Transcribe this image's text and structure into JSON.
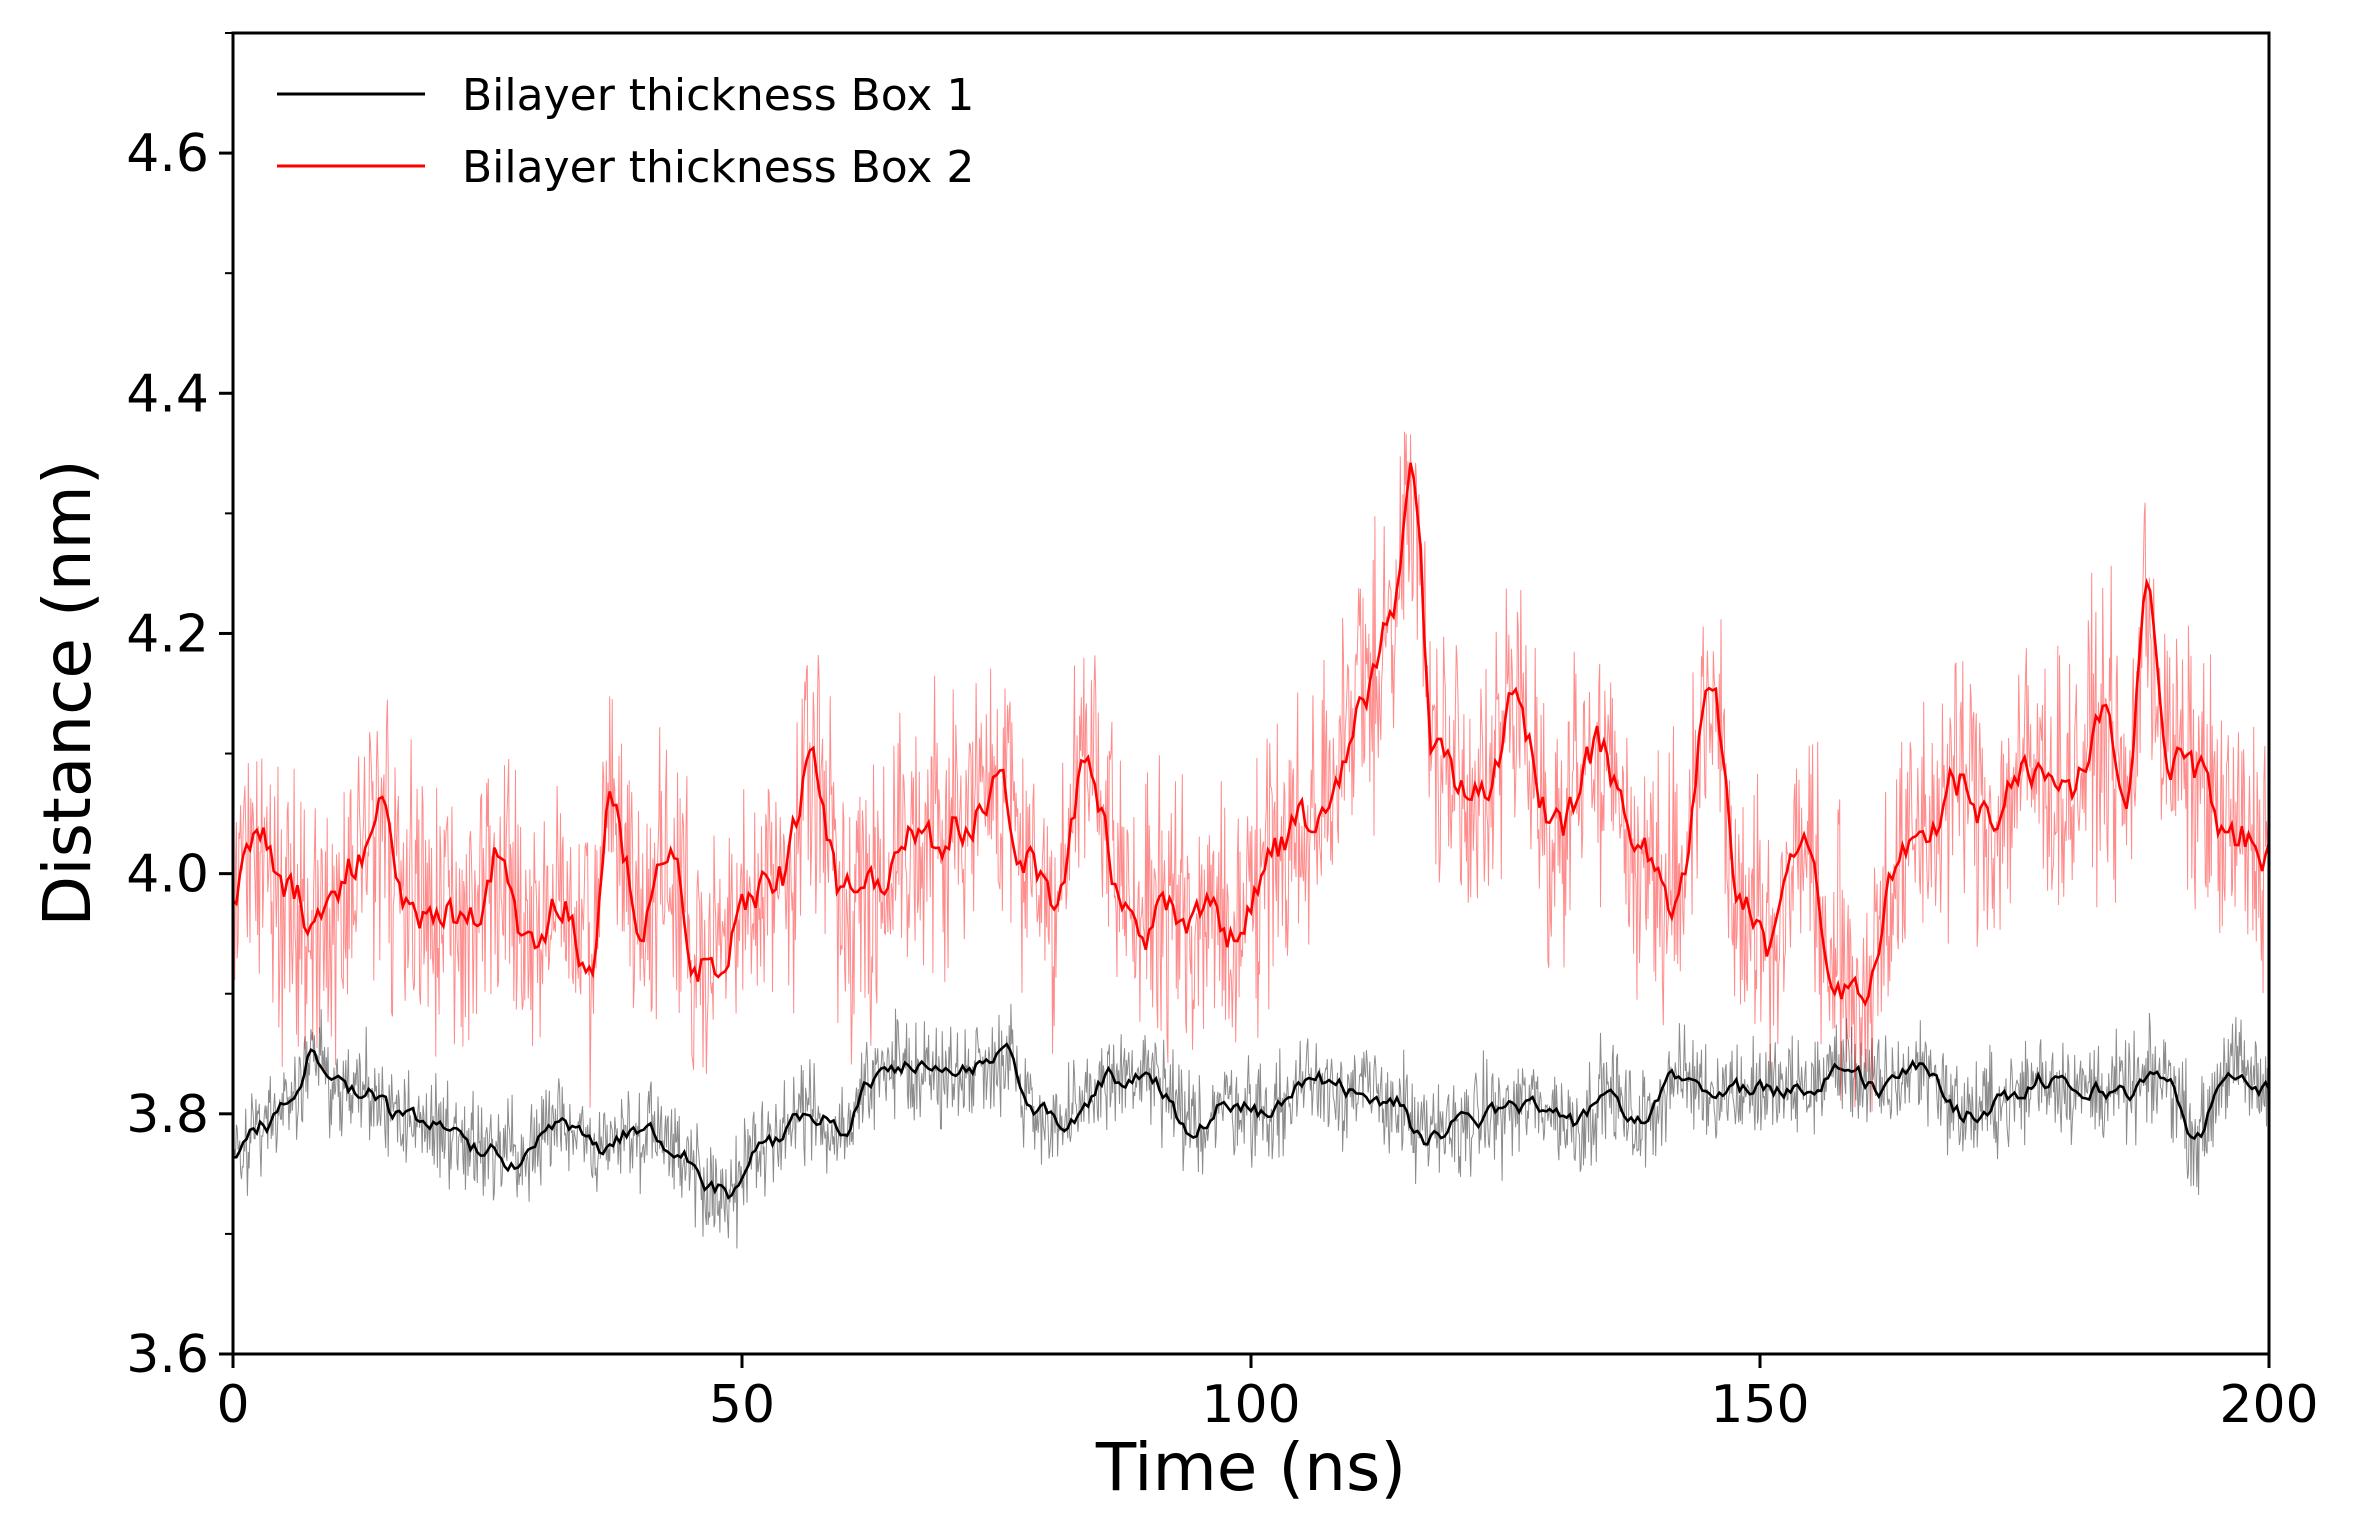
{
  "chart_data": {
    "type": "line",
    "title": "",
    "xlabel": "Time (ns)",
    "ylabel": "Distance (nm)",
    "xlim": [
      0,
      200
    ],
    "ylim": [
      3.6,
      4.7
    ],
    "xticks": [
      0,
      50,
      100,
      150,
      200
    ],
    "xtick_labels": [
      "0",
      "50",
      "100",
      "150",
      "200"
    ],
    "yticks": [
      3.6,
      3.8,
      4.0,
      4.2,
      4.4,
      4.6
    ],
    "ytick_labels": [
      "3.6",
      "3.8",
      "4.0",
      "4.2",
      "4.4",
      "4.6"
    ],
    "y_minor_step": 0.1,
    "grid": false,
    "legend_position": "top-left",
    "series": [
      {
        "name": "Bilayer thickness Box 1",
        "color": "#000000",
        "raw_noise_amplitude": 0.035,
        "smoothed": {
          "x": [
            0,
            3,
            6,
            8,
            10,
            13,
            16,
            20,
            25,
            28,
            32,
            36,
            40,
            44,
            47,
            49,
            52,
            56,
            60,
            63,
            66,
            70,
            73,
            76,
            79,
            82,
            86,
            90,
            94,
            98,
            102,
            106,
            110,
            114,
            117,
            120,
            124,
            128,
            132,
            135,
            138,
            142,
            146,
            150,
            154,
            158,
            162,
            166,
            170,
            174,
            178,
            182,
            186,
            190,
            193,
            196,
            200
          ],
          "y": [
            3.76,
            3.79,
            3.81,
            3.85,
            3.82,
            3.82,
            3.8,
            3.79,
            3.77,
            3.76,
            3.79,
            3.77,
            3.79,
            3.77,
            3.74,
            3.73,
            3.77,
            3.8,
            3.79,
            3.83,
            3.84,
            3.83,
            3.84,
            3.85,
            3.8,
            3.79,
            3.83,
            3.83,
            3.79,
            3.81,
            3.8,
            3.83,
            3.82,
            3.81,
            3.78,
            3.79,
            3.8,
            3.81,
            3.79,
            3.82,
            3.79,
            3.83,
            3.82,
            3.82,
            3.82,
            3.84,
            3.82,
            3.84,
            3.8,
            3.81,
            3.83,
            3.82,
            3.82,
            3.83,
            3.78,
            3.84,
            3.82
          ]
        }
      },
      {
        "name": "Bilayer thickness Box 2",
        "color": "#ff0000",
        "raw_noise_amplitude": 0.09,
        "smoothed": {
          "x": [
            0,
            3,
            6,
            8,
            10,
            12,
            14,
            17,
            20,
            23,
            26,
            29,
            32,
            35,
            37,
            40,
            43,
            46,
            48,
            51,
            54,
            57,
            60,
            63,
            66,
            69,
            72,
            75,
            78,
            81,
            84,
            87,
            90,
            93,
            96,
            99,
            102,
            105,
            108,
            111,
            114,
            116,
            118,
            120,
            123,
            126,
            130,
            134,
            138,
            142,
            145,
            148,
            151,
            154,
            157,
            160,
            163,
            166,
            170,
            173,
            176,
            180,
            184,
            186,
            188,
            190,
            193,
            196,
            200
          ],
          "y": [
            3.99,
            4.02,
            3.98,
            3.95,
            3.96,
            4.0,
            4.06,
            3.98,
            3.96,
            3.96,
            4.02,
            3.94,
            3.98,
            3.92,
            4.06,
            3.97,
            4.0,
            3.92,
            3.93,
            3.98,
            4.0,
            4.09,
            3.98,
            3.98,
            4.04,
            4.03,
            4.05,
            4.08,
            4.02,
            3.98,
            4.1,
            3.99,
            3.96,
            3.97,
            3.96,
            3.95,
            4.02,
            4.04,
            4.08,
            4.15,
            4.22,
            4.32,
            4.1,
            4.08,
            4.06,
            4.14,
            4.03,
            4.1,
            4.02,
            3.98,
            4.16,
            3.99,
            3.94,
            4.03,
            3.93,
            3.9,
            3.99,
            4.04,
            4.08,
            4.04,
            4.09,
            4.07,
            4.12,
            4.06,
            4.22,
            4.1,
            4.08,
            4.03,
            4.02
          ]
        }
      }
    ]
  }
}
